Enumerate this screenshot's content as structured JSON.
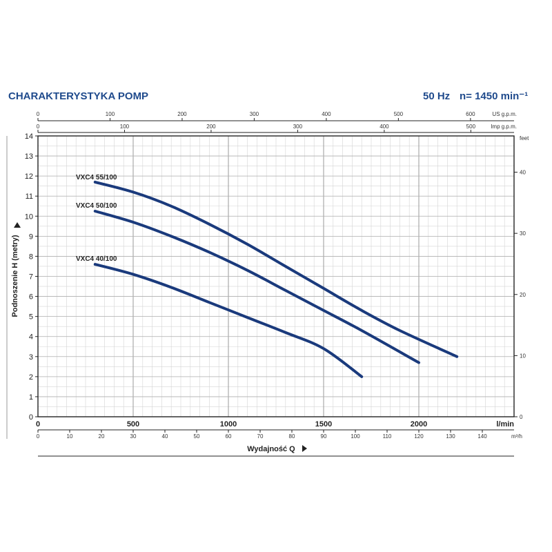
{
  "header": {
    "title": "CHARAKTERYSTYKA POMP",
    "freq": "50 Hz",
    "speed": "n= 1450 min⁻¹"
  },
  "chart_data": {
    "type": "line",
    "title": "CHARAKTERYSTYKA POMP",
    "xlabel": "Wydajność Q",
    "ylabel": "Podnoszenie H (metry)",
    "x_unit": "l/min",
    "xlim": [
      0,
      2500
    ],
    "ylim": [
      0,
      14
    ],
    "x_ticks": [
      0,
      500,
      1000,
      1500,
      2000
    ],
    "y_ticks": [
      0,
      1,
      2,
      3,
      4,
      5,
      6,
      7,
      8,
      9,
      10,
      11,
      12,
      13,
      14
    ],
    "grid": true,
    "secondary_axes": {
      "us_gpm": {
        "label": "US g.p.m.",
        "ticks": [
          0,
          100,
          200,
          300,
          400,
          500,
          600
        ]
      },
      "imp_gpm": {
        "label": "Imp g.p.m.",
        "ticks": [
          0,
          100,
          200,
          300,
          400,
          500
        ]
      },
      "m3h": {
        "label": "m³/h",
        "ticks": [
          0,
          10,
          20,
          30,
          40,
          50,
          60,
          70,
          80,
          90,
          100,
          110,
          120,
          130,
          140
        ]
      },
      "feet": {
        "label": "feet",
        "ticks": [
          0,
          10,
          20,
          30,
          40
        ]
      }
    },
    "series": [
      {
        "name": "VXC4 55/100",
        "color": "#1a3a7c",
        "x": [
          300,
          500,
          700,
          900,
          1100,
          1300,
          1500,
          1700,
          1900,
          2200
        ],
        "y": [
          11.7,
          11.2,
          10.5,
          9.6,
          8.6,
          7.5,
          6.4,
          5.3,
          4.3,
          3.0
        ]
      },
      {
        "name": "VXC4 50/100",
        "color": "#1a3a7c",
        "x": [
          300,
          500,
          700,
          900,
          1100,
          1300,
          1500,
          1700,
          2000
        ],
        "y": [
          10.25,
          9.7,
          9.0,
          8.2,
          7.3,
          6.3,
          5.3,
          4.3,
          2.7
        ]
      },
      {
        "name": "VXC4 40/100",
        "color": "#1a3a7c",
        "x": [
          300,
          500,
          700,
          900,
          1100,
          1300,
          1500,
          1700
        ],
        "y": [
          7.6,
          7.1,
          6.45,
          5.7,
          4.95,
          4.2,
          3.4,
          2.0
        ]
      }
    ]
  }
}
